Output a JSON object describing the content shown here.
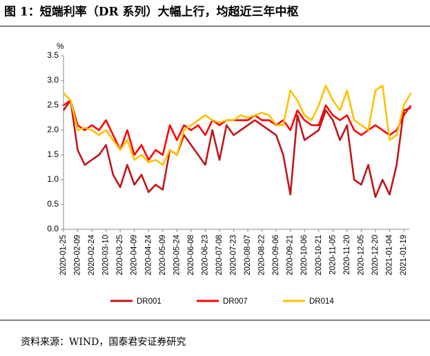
{
  "chart_data": {
    "type": "line",
    "title": "图 1：短端利率（DR 系列）大幅上行，均超近三年中枢",
    "y_unit": "%",
    "source": "资料来源：WIND，国泰君安证券研究",
    "categories": [
      "2020-01-25",
      null,
      "2020-02-09",
      null,
      "2020-02-24",
      null,
      "2020-03-10",
      null,
      "2020-03-25",
      null,
      "2020-04-09",
      null,
      "2020-04-24",
      null,
      "2020-05-09",
      null,
      "2020-05-24",
      null,
      "2020-06-08",
      null,
      "2020-06-23",
      null,
      "2020-07-08",
      null,
      "2020-07-23",
      null,
      "2020-08-07",
      null,
      "2020-08-22",
      null,
      "2020-09-06",
      null,
      "2020-09-21",
      null,
      "2020-10-06",
      null,
      "2020-10-21",
      null,
      "2020-11-05",
      null,
      "2020-11-20",
      null,
      "2020-12-05",
      null,
      "2020-12-20",
      null,
      "2021-01-04",
      null,
      "2021-01-19",
      null
    ],
    "series": [
      {
        "name": "DR001",
        "color": "#c0141a",
        "values": [
          2.4,
          2.6,
          1.6,
          1.3,
          1.4,
          1.5,
          1.7,
          1.1,
          0.85,
          1.3,
          0.9,
          1.1,
          0.75,
          0.9,
          0.8,
          1.6,
          1.5,
          1.9,
          1.7,
          1.5,
          1.3,
          2.0,
          1.4,
          2.1,
          1.9,
          2.0,
          2.1,
          2.2,
          2.1,
          2.0,
          1.9,
          1.5,
          0.7,
          2.3,
          1.8,
          1.9,
          2.0,
          2.4,
          2.2,
          1.8,
          2.1,
          1.0,
          0.9,
          1.3,
          0.65,
          1.0,
          0.7,
          1.3,
          2.4,
          2.45
        ]
      },
      {
        "name": "DR007",
        "color": "#ff0000",
        "values": [
          2.5,
          2.6,
          2.1,
          2.0,
          2.1,
          2.0,
          2.2,
          1.9,
          1.6,
          2.0,
          1.5,
          1.7,
          1.4,
          1.6,
          1.5,
          2.1,
          1.8,
          2.1,
          2.0,
          2.1,
          1.9,
          2.2,
          2.1,
          2.2,
          2.2,
          2.2,
          2.2,
          2.3,
          2.2,
          2.2,
          2.1,
          2.2,
          2.0,
          2.4,
          2.2,
          2.1,
          2.1,
          2.5,
          2.3,
          2.2,
          2.3,
          2.0,
          1.9,
          2.0,
          2.1,
          2.0,
          1.9,
          2.0,
          2.3,
          2.5
        ]
      },
      {
        "name": "DR014",
        "color": "#ffc000",
        "values": [
          2.75,
          2.6,
          2.0,
          2.05,
          2.0,
          1.9,
          2.0,
          1.8,
          1.6,
          1.8,
          1.4,
          1.5,
          1.35,
          1.4,
          1.3,
          1.6,
          1.5,
          2.0,
          2.1,
          2.2,
          2.3,
          2.2,
          2.15,
          2.2,
          2.2,
          2.3,
          2.25,
          2.3,
          2.35,
          2.3,
          2.1,
          2.1,
          2.8,
          2.6,
          2.3,
          2.2,
          2.5,
          2.9,
          2.6,
          2.4,
          2.8,
          2.2,
          2.1,
          2.0,
          2.8,
          2.9,
          1.8,
          1.9,
          2.5,
          2.75
        ]
      }
    ],
    "ylim": [
      0,
      3.5
    ],
    "yticks": [
      {
        "value": 0,
        "label": "0.0"
      },
      {
        "value": 0.5,
        "label": "0.5"
      },
      {
        "value": 1,
        "label": "1.0"
      },
      {
        "value": 1.5,
        "label": "1.5"
      },
      {
        "value": 2,
        "label": "2.0"
      },
      {
        "value": 2.5,
        "label": "2.5"
      },
      {
        "value": 3,
        "label": "3.0"
      },
      {
        "value": 3.5,
        "label": "3.5"
      }
    ],
    "grid": false,
    "legend": "bottom"
  }
}
